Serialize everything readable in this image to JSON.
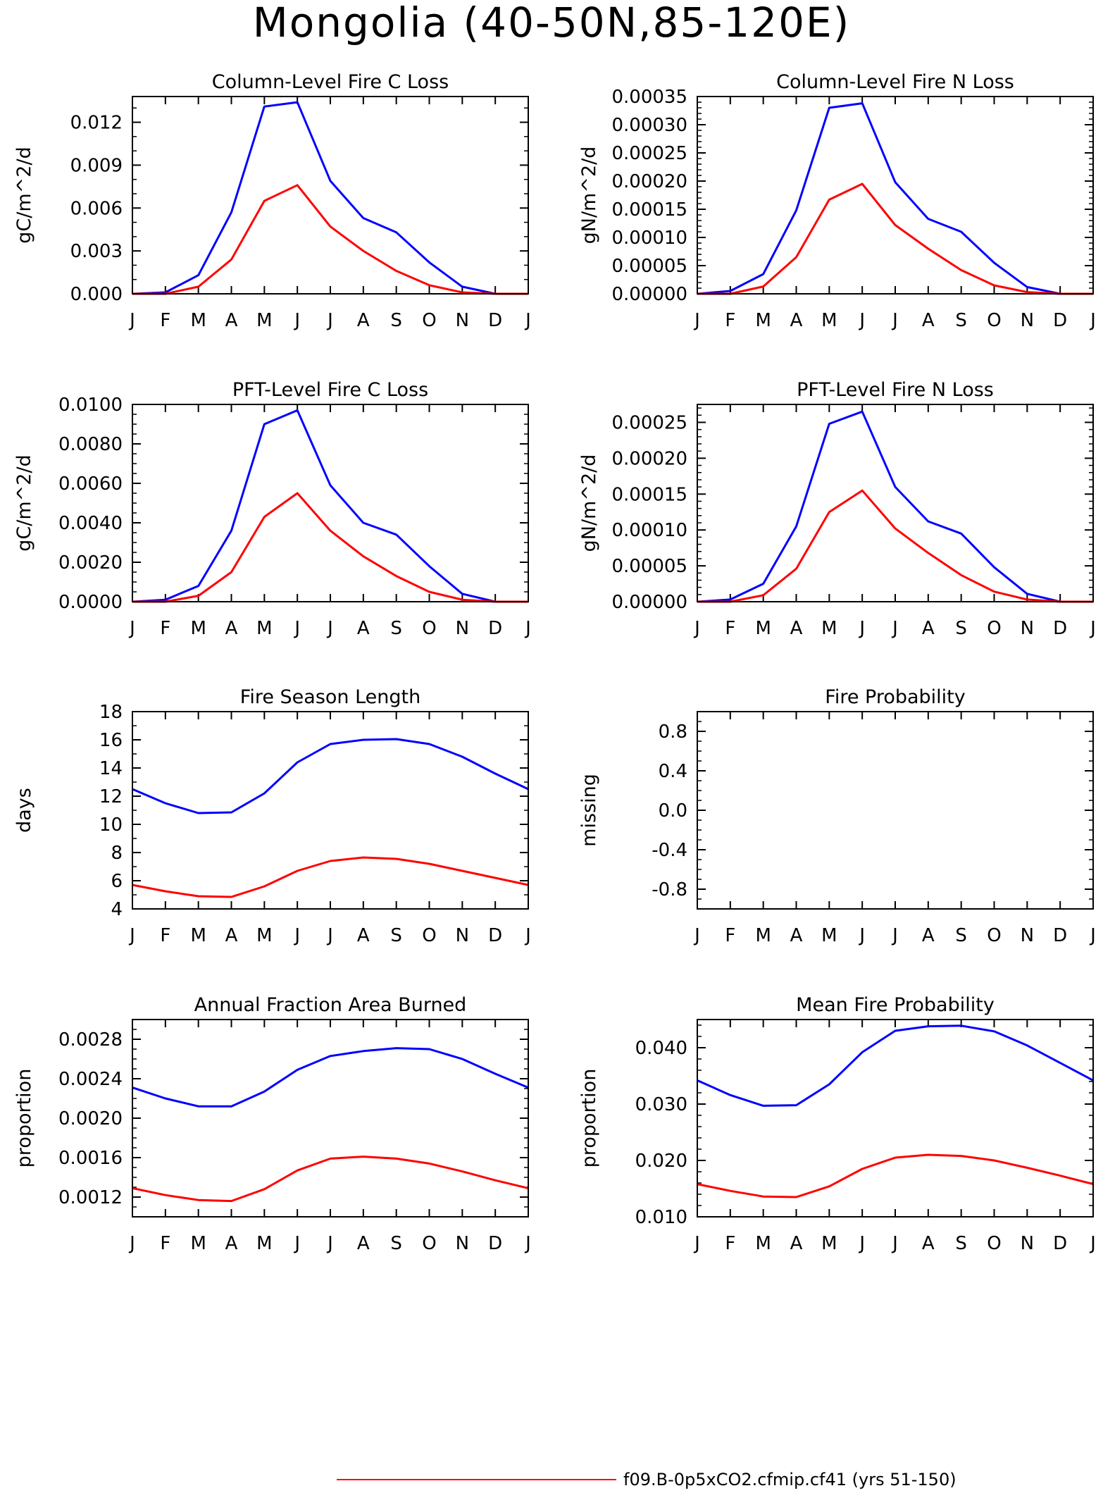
{
  "title": "Mongolia (40-50N,85-120E)",
  "legend": {
    "entries": [
      {
        "label": "f09.B-0p5xCO2.cfmip.cf41 (yrs 51-150)",
        "color": "#ff0000"
      }
    ]
  },
  "chart_data": [
    {
      "type": "line",
      "title": "Column-Level Fire C Loss",
      "ylabel": "gC/m^2/d",
      "xlabel": "",
      "categories": [
        "J",
        "F",
        "M",
        "A",
        "M",
        "J",
        "J",
        "A",
        "S",
        "O",
        "N",
        "D",
        "J"
      ],
      "ylim": [
        0,
        0.0138
      ],
      "yticks": [
        "0.000",
        "0.003",
        "0.006",
        "0.009",
        "0.012"
      ],
      "ytick_values": [
        0,
        0.003,
        0.006,
        0.009,
        0.012
      ],
      "minor_step": 0.001,
      "series": [
        {
          "color": "#0000ff",
          "values": [
            0.0,
            0.0001,
            0.0013,
            0.0057,
            0.0131,
            0.0134,
            0.0079,
            0.0053,
            0.0043,
            0.0022,
            0.0005,
            0.0,
            0.0
          ]
        },
        {
          "color": "#ff0000",
          "values": [
            0.0,
            0.0,
            0.0005,
            0.0024,
            0.0065,
            0.0076,
            0.0047,
            0.003,
            0.0016,
            0.0006,
            0.0001,
            0.0,
            0.0
          ]
        }
      ]
    },
    {
      "type": "line",
      "title": "Column-Level Fire N Loss",
      "ylabel": "gN/m^2/d",
      "xlabel": "",
      "categories": [
        "J",
        "F",
        "M",
        "A",
        "M",
        "J",
        "J",
        "A",
        "S",
        "O",
        "N",
        "D",
        "J"
      ],
      "ylim": [
        0,
        0.00035
      ],
      "yticks": [
        "0.00000",
        "0.00005",
        "0.00010",
        "0.00015",
        "0.00020",
        "0.00025",
        "0.00030",
        "0.00035"
      ],
      "ytick_values": [
        0,
        5e-05,
        0.0001,
        0.00015,
        0.0002,
        0.00025,
        0.0003,
        0.00035
      ],
      "minor_step": 1e-05,
      "series": [
        {
          "color": "#0000ff",
          "values": [
            0.0,
            5e-06,
            3.5e-05,
            0.000148,
            0.00033,
            0.000338,
            0.000198,
            0.000133,
            0.00011,
            5.5e-05,
            1.2e-05,
            0.0,
            0.0
          ]
        },
        {
          "color": "#ff0000",
          "values": [
            0.0,
            0.0,
            1.3e-05,
            6.5e-05,
            0.000167,
            0.000195,
            0.000122,
            8e-05,
            4.2e-05,
            1.5e-05,
            3e-06,
            0.0,
            0.0
          ]
        }
      ]
    },
    {
      "type": "line",
      "title": "PFT-Level Fire C Loss",
      "ylabel": "gC/m^2/d",
      "xlabel": "",
      "categories": [
        "J",
        "F",
        "M",
        "A",
        "M",
        "J",
        "J",
        "A",
        "S",
        "O",
        "N",
        "D",
        "J"
      ],
      "ylim": [
        0,
        0.01
      ],
      "yticks": [
        "0.0000",
        "0.0020",
        "0.0040",
        "0.0060",
        "0.0080",
        "0.0100"
      ],
      "ytick_values": [
        0,
        0.002,
        0.004,
        0.006,
        0.008,
        0.01
      ],
      "minor_step": 0.0005,
      "series": [
        {
          "color": "#0000ff",
          "values": [
            0.0,
            0.0001,
            0.0008,
            0.0036,
            0.009,
            0.0097,
            0.0059,
            0.004,
            0.0034,
            0.0018,
            0.0004,
            0.0,
            0.0
          ]
        },
        {
          "color": "#ff0000",
          "values": [
            0.0,
            0.0,
            0.0003,
            0.0015,
            0.0043,
            0.0055,
            0.0036,
            0.0023,
            0.0013,
            0.0005,
            0.0001,
            0.0,
            0.0
          ]
        }
      ]
    },
    {
      "type": "line",
      "title": "PFT-Level Fire N Loss",
      "ylabel": "gN/m^2/d",
      "xlabel": "",
      "categories": [
        "J",
        "F",
        "M",
        "A",
        "M",
        "J",
        "J",
        "A",
        "S",
        "O",
        "N",
        "D",
        "J"
      ],
      "ylim": [
        0,
        0.000275
      ],
      "yticks": [
        "0.00000",
        "0.00005",
        "0.00010",
        "0.00015",
        "0.00020",
        "0.00025"
      ],
      "ytick_values": [
        0,
        5e-05,
        0.0001,
        0.00015,
        0.0002,
        0.00025
      ],
      "minor_step": 1e-05,
      "series": [
        {
          "color": "#0000ff",
          "values": [
            0.0,
            3e-06,
            2.5e-05,
            0.000105,
            0.000248,
            0.000265,
            0.00016,
            0.000112,
            9.5e-05,
            4.8e-05,
            1.1e-05,
            0.0,
            0.0
          ]
        },
        {
          "color": "#ff0000",
          "values": [
            0.0,
            0.0,
            9e-06,
            4.6e-05,
            0.000125,
            0.000155,
            0.000102,
            6.8e-05,
            3.7e-05,
            1.4e-05,
            3e-06,
            0.0,
            0.0
          ]
        }
      ]
    },
    {
      "type": "line",
      "title": "Fire Season Length",
      "ylabel": "days",
      "xlabel": "",
      "categories": [
        "J",
        "F",
        "M",
        "A",
        "M",
        "J",
        "J",
        "A",
        "S",
        "O",
        "N",
        "D",
        "J"
      ],
      "ylim": [
        4,
        18
      ],
      "yticks": [
        "4",
        "6",
        "8",
        "10",
        "12",
        "14",
        "16",
        "18"
      ],
      "ytick_values": [
        4,
        6,
        8,
        10,
        12,
        14,
        16,
        18
      ],
      "minor_step": 1,
      "series": [
        {
          "color": "#0000ff",
          "values": [
            12.5,
            11.5,
            10.8,
            10.85,
            12.2,
            14.4,
            15.7,
            16.0,
            16.05,
            15.7,
            14.8,
            13.6,
            12.5
          ]
        },
        {
          "color": "#ff0000",
          "values": [
            5.7,
            5.25,
            4.9,
            4.85,
            5.6,
            6.7,
            7.4,
            7.65,
            7.55,
            7.2,
            6.7,
            6.2,
            5.7
          ]
        }
      ]
    },
    {
      "type": "line",
      "title": "Fire Probability",
      "ylabel": "missing",
      "xlabel": "",
      "categories": [
        "J",
        "F",
        "M",
        "A",
        "M",
        "J",
        "J",
        "A",
        "S",
        "O",
        "N",
        "D",
        "J"
      ],
      "ylim": [
        -1,
        1
      ],
      "yticks": [
        "-0.8",
        "-0.4",
        "0.0",
        "0.4",
        "0.8"
      ],
      "ytick_values": [
        -0.8,
        -0.4,
        0,
        0.4,
        0.8
      ],
      "minor_step": 0.1,
      "series": []
    },
    {
      "type": "line",
      "title": "Annual Fraction Area Burned",
      "ylabel": "proportion",
      "xlabel": "",
      "categories": [
        "J",
        "F",
        "M",
        "A",
        "M",
        "J",
        "J",
        "A",
        "S",
        "O",
        "N",
        "D",
        "J"
      ],
      "ylim": [
        0.001,
        0.003
      ],
      "yticks": [
        "0.0012",
        "0.0016",
        "0.0020",
        "0.0024",
        "0.0028"
      ],
      "ytick_values": [
        0.0012,
        0.0016,
        0.002,
        0.0024,
        0.0028
      ],
      "minor_step": 0.0001,
      "series": [
        {
          "color": "#0000ff",
          "values": [
            0.00231,
            0.0022,
            0.00212,
            0.00212,
            0.00227,
            0.00249,
            0.00263,
            0.00268,
            0.00271,
            0.0027,
            0.0026,
            0.00245,
            0.00231
          ]
        },
        {
          "color": "#ff0000",
          "values": [
            0.00129,
            0.00122,
            0.00117,
            0.00116,
            0.00128,
            0.00147,
            0.00159,
            0.00161,
            0.00159,
            0.00154,
            0.00146,
            0.00137,
            0.00129
          ]
        }
      ]
    },
    {
      "type": "line",
      "title": "Mean Fire Probability",
      "ylabel": "proportion",
      "xlabel": "",
      "categories": [
        "J",
        "F",
        "M",
        "A",
        "M",
        "J",
        "J",
        "A",
        "S",
        "O",
        "N",
        "D",
        "J"
      ],
      "ylim": [
        0.01,
        0.045
      ],
      "yticks": [
        "0.010",
        "0.020",
        "0.030",
        "0.040"
      ],
      "ytick_values": [
        0.01,
        0.02,
        0.03,
        0.04
      ],
      "minor_step": 0.002,
      "series": [
        {
          "color": "#0000ff",
          "values": [
            0.0342,
            0.0316,
            0.0297,
            0.0298,
            0.0335,
            0.0392,
            0.043,
            0.0438,
            0.0439,
            0.0429,
            0.0404,
            0.0373,
            0.0342
          ]
        },
        {
          "color": "#ff0000",
          "values": [
            0.0158,
            0.0146,
            0.0136,
            0.0135,
            0.0154,
            0.0185,
            0.0205,
            0.021,
            0.0208,
            0.02,
            0.0187,
            0.0173,
            0.0158
          ]
        }
      ]
    }
  ]
}
